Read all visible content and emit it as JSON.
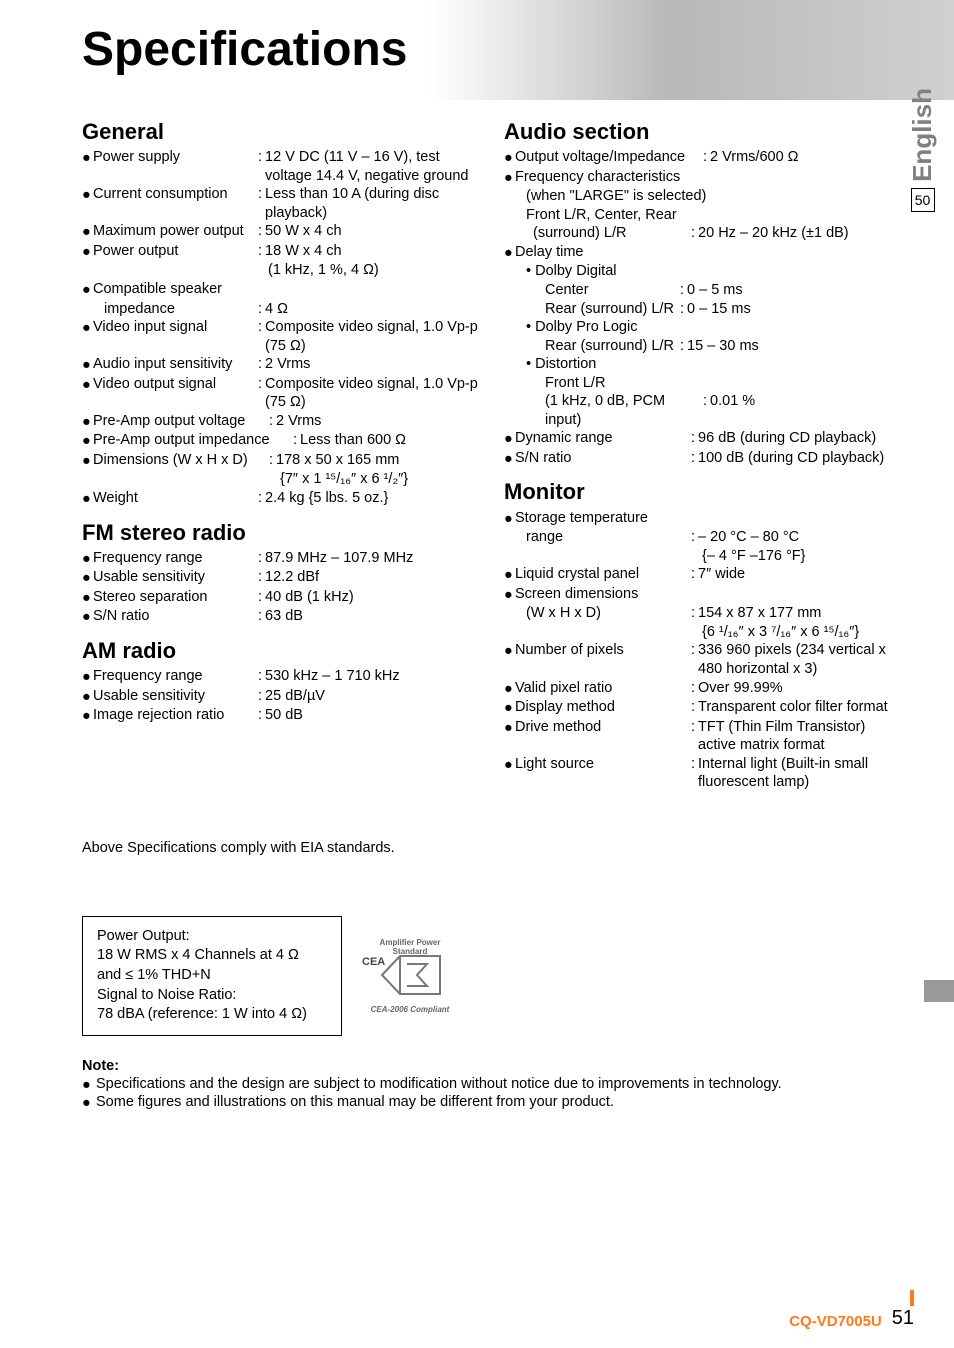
{
  "page": {
    "title": "Specifications",
    "side_lang": "English",
    "side_page_ref": "50",
    "model": "CQ-VD7005U",
    "page_number": "51"
  },
  "general": {
    "heading": "General",
    "rows": [
      {
        "b": "●",
        "label": "Power supply",
        "sep": ":",
        "value": "12 V DC (11 V – 16 V), test voltage 14.4 V, negative ground",
        "label_w": 175
      },
      {
        "b": "●",
        "label": "Current consumption",
        "sep": ":",
        "value": "Less than 10 A (during disc playback)",
        "label_w": 175
      },
      {
        "b": "●",
        "label": "Maximum power output",
        "sep": ":",
        "value": "50 W x 4 ch",
        "label_w": 175
      },
      {
        "b": "●",
        "label": "Power output",
        "sep": ":",
        "value": "18 W x 4 ch",
        "label_w": 175
      },
      {
        "b": "",
        "label": "",
        "sep": "",
        "value": "(1 kHz, 1 %, 4 Ω)",
        "label_w": 186,
        "cont": true
      },
      {
        "b": "●",
        "label": "Compatible speaker",
        "sep": "",
        "value": "",
        "label_w": 175
      },
      {
        "b": "",
        "label": "impedance",
        "sep": ":",
        "value": "4 Ω",
        "label_w": 175,
        "noindent": true,
        "pad": 11
      },
      {
        "b": "●",
        "label": "Video input signal",
        "sep": ":",
        "value": "Composite video signal, 1.0 Vp-p (75 Ω)",
        "label_w": 175
      },
      {
        "b": "●",
        "label": "Audio input sensitivity",
        "sep": ":",
        "value": "2 Vrms",
        "label_w": 175
      },
      {
        "b": "●",
        "label": "Video output signal",
        "sep": ":",
        "value": "Composite video signal, 1.0 Vp-p (75 Ω)",
        "label_w": 175
      },
      {
        "b": "●",
        "label": "Pre-Amp output voltage",
        "sep": ":",
        "value": "2 Vrms",
        "label_w": 186
      },
      {
        "b": "●",
        "label": "Pre-Amp output impedance",
        "sep": ":",
        "value": "Less than 600 Ω",
        "label_w": 210
      },
      {
        "b": "●",
        "label": "Dimensions (W x H x D)",
        "sep": ":",
        "value": "178 x 50 x 165 mm",
        "label_w": 186
      },
      {
        "b": "",
        "label": "",
        "sep": "",
        "value": "{7″ x 1 ¹⁵/₁₆″ x 6 ¹/₂″}",
        "label_w": 198,
        "cont": true
      },
      {
        "b": "●",
        "label": "Weight",
        "sep": ":",
        "value": "2.4 kg {5 lbs. 5 oz.}",
        "label_w": 175
      }
    ]
  },
  "fm": {
    "heading": "FM stereo radio",
    "rows": [
      {
        "b": "●",
        "label": "Frequency range",
        "sep": ":",
        "value": "87.9 MHz – 107.9 MHz",
        "label_w": 175
      },
      {
        "b": "●",
        "label": "Usable sensitivity",
        "sep": ":",
        "value": "12.2 dBf",
        "label_w": 175
      },
      {
        "b": "●",
        "label": "Stereo separation",
        "sep": ":",
        "value": "40 dB (1 kHz)",
        "label_w": 175
      },
      {
        "b": "●",
        "label": "S/N ratio",
        "sep": ":",
        "value": "63 dB",
        "label_w": 175
      }
    ]
  },
  "am": {
    "heading": "AM radio",
    "rows": [
      {
        "b": "●",
        "label": "Frequency range",
        "sep": ":",
        "value": "530 kHz – 1 710 kHz",
        "label_w": 175
      },
      {
        "b": "●",
        "label": "Usable sensitivity",
        "sep": ":",
        "value": "25 dB/µV",
        "label_w": 175
      },
      {
        "b": "●",
        "label": "Image rejection ratio",
        "sep": ":",
        "value": "50 dB",
        "label_w": 175
      }
    ]
  },
  "audio": {
    "heading": "Audio section",
    "rows": [
      {
        "b": "●",
        "label": "Output voltage/Impedance",
        "sep": ":",
        "value": "2 Vrms/600 Ω",
        "label_w": 198
      },
      {
        "b": "●",
        "label": "Frequency characteristics",
        "sep": "",
        "value": "",
        "label_w": 220
      },
      {
        "b": "",
        "label": "(when \"LARGE\" is selected)",
        "sep": "",
        "value": "",
        "label_w": 250,
        "pad": 11
      },
      {
        "b": "",
        "label": "Front L/R, Center, Rear",
        "sep": "",
        "value": "",
        "label_w": 250,
        "pad": 11
      },
      {
        "b": "",
        "label": "(surround) L/R",
        "sep": ":",
        "value": "20 Hz – 20 kHz (±1 dB)",
        "label_w": 186,
        "pad": 18
      },
      {
        "b": "●",
        "label": "Delay time",
        "sep": "",
        "value": "",
        "label_w": 175
      },
      {
        "b": "",
        "label": "• Dolby Digital",
        "sep": "",
        "value": "",
        "label_w": 175,
        "pad": 11
      },
      {
        "b": "",
        "label": "Center",
        "sep": ":",
        "value": "0 – 5 ms",
        "label_w": 175,
        "pad": 30
      },
      {
        "b": "",
        "label": "Rear (surround) L/R",
        "sep": ":",
        "value": "0 – 15 ms",
        "label_w": 175,
        "pad": 30
      },
      {
        "b": "",
        "label": "• Dolby Pro Logic",
        "sep": "",
        "value": "",
        "label_w": 175,
        "pad": 11
      },
      {
        "b": "",
        "label": "Rear (surround) L/R",
        "sep": ":",
        "value": "15 – 30 ms",
        "label_w": 175,
        "pad": 30
      },
      {
        "b": "",
        "label": "• Distortion",
        "sep": "",
        "value": "",
        "label_w": 175,
        "pad": 11
      },
      {
        "b": "",
        "label": "Front L/R",
        "sep": "",
        "value": "",
        "label_w": 175,
        "pad": 30
      },
      {
        "b": "",
        "label": "(1 kHz, 0 dB, PCM input)",
        "sep": ":",
        "value": "0.01 %",
        "label_w": 198,
        "pad": 30
      },
      {
        "b": "●",
        "label": "Dynamic range",
        "sep": ":",
        "value": "96 dB (during CD playback)",
        "label_w": 186
      },
      {
        "b": "●",
        "label": "S/N ratio",
        "sep": ":",
        "value": "100 dB (during CD playback)",
        "label_w": 186
      }
    ]
  },
  "monitor": {
    "heading": "Monitor",
    "rows": [
      {
        "b": "●",
        "label": "Storage temperature",
        "sep": "",
        "value": "",
        "label_w": 186
      },
      {
        "b": "",
        "label": "range",
        "sep": ":",
        "value": "– 20 °C – 80 °C",
        "label_w": 186,
        "pad": 11
      },
      {
        "b": "",
        "label": "",
        "sep": "",
        "value": "{– 4 °F  –176 °F}",
        "label_w": 198,
        "cont": true
      },
      {
        "b": "●",
        "label": "Liquid crystal panel",
        "sep": ":",
        "value": "7″ wide",
        "label_w": 186
      },
      {
        "b": "●",
        "label": "Screen dimensions",
        "sep": "",
        "value": "",
        "label_w": 186
      },
      {
        "b": "",
        "label": "(W x H x D)",
        "sep": ":",
        "value": "154 x 87 x 177 mm",
        "label_w": 186,
        "pad": 11
      },
      {
        "b": "",
        "label": "",
        "sep": "",
        "value": "{6 ¹/₁₆″ x 3 ⁷/₁₆″ x 6 ¹⁵/₁₆″}",
        "label_w": 198,
        "cont": true
      },
      {
        "b": "●",
        "label": "Number of pixels",
        "sep": ":",
        "value": "336 960 pixels (234 vertical x 480 horizontal x 3)",
        "label_w": 186
      },
      {
        "b": "●",
        "label": "Valid pixel ratio",
        "sep": ":",
        "value": "Over 99.99%",
        "label_w": 186
      },
      {
        "b": "●",
        "label": "Display method",
        "sep": ":",
        "value": "Transparent color filter format",
        "label_w": 186
      },
      {
        "b": "●",
        "label": "Drive method",
        "sep": ":",
        "value": "TFT (Thin Film Transistor) active matrix format",
        "label_w": 186
      },
      {
        "b": "●",
        "label": "Light source",
        "sep": ":",
        "value": "Internal light (Built-in small fluorescent lamp)",
        "label_w": 186
      }
    ]
  },
  "compliance": "Above Specifications comply with EIA standards.",
  "power_box": {
    "line1": "Power Output:",
    "line2": "18 W RMS x 4 Channels at 4  Ω and ≤ 1% THD+N",
    "line3": "Signal to Noise Ratio:",
    "line4": "78 dBA (reference: 1 W into 4 Ω)"
  },
  "cea": {
    "top": "Amplifier Power Standard",
    "bottom": "CEA-2006 Compliant",
    "mark": "CEA"
  },
  "note": {
    "heading": "Note:",
    "items": [
      "Specifications and the design are subject to modification without notice due to improvements in technology.",
      "Some figures and illustrations on this manual may be different from your product."
    ]
  }
}
